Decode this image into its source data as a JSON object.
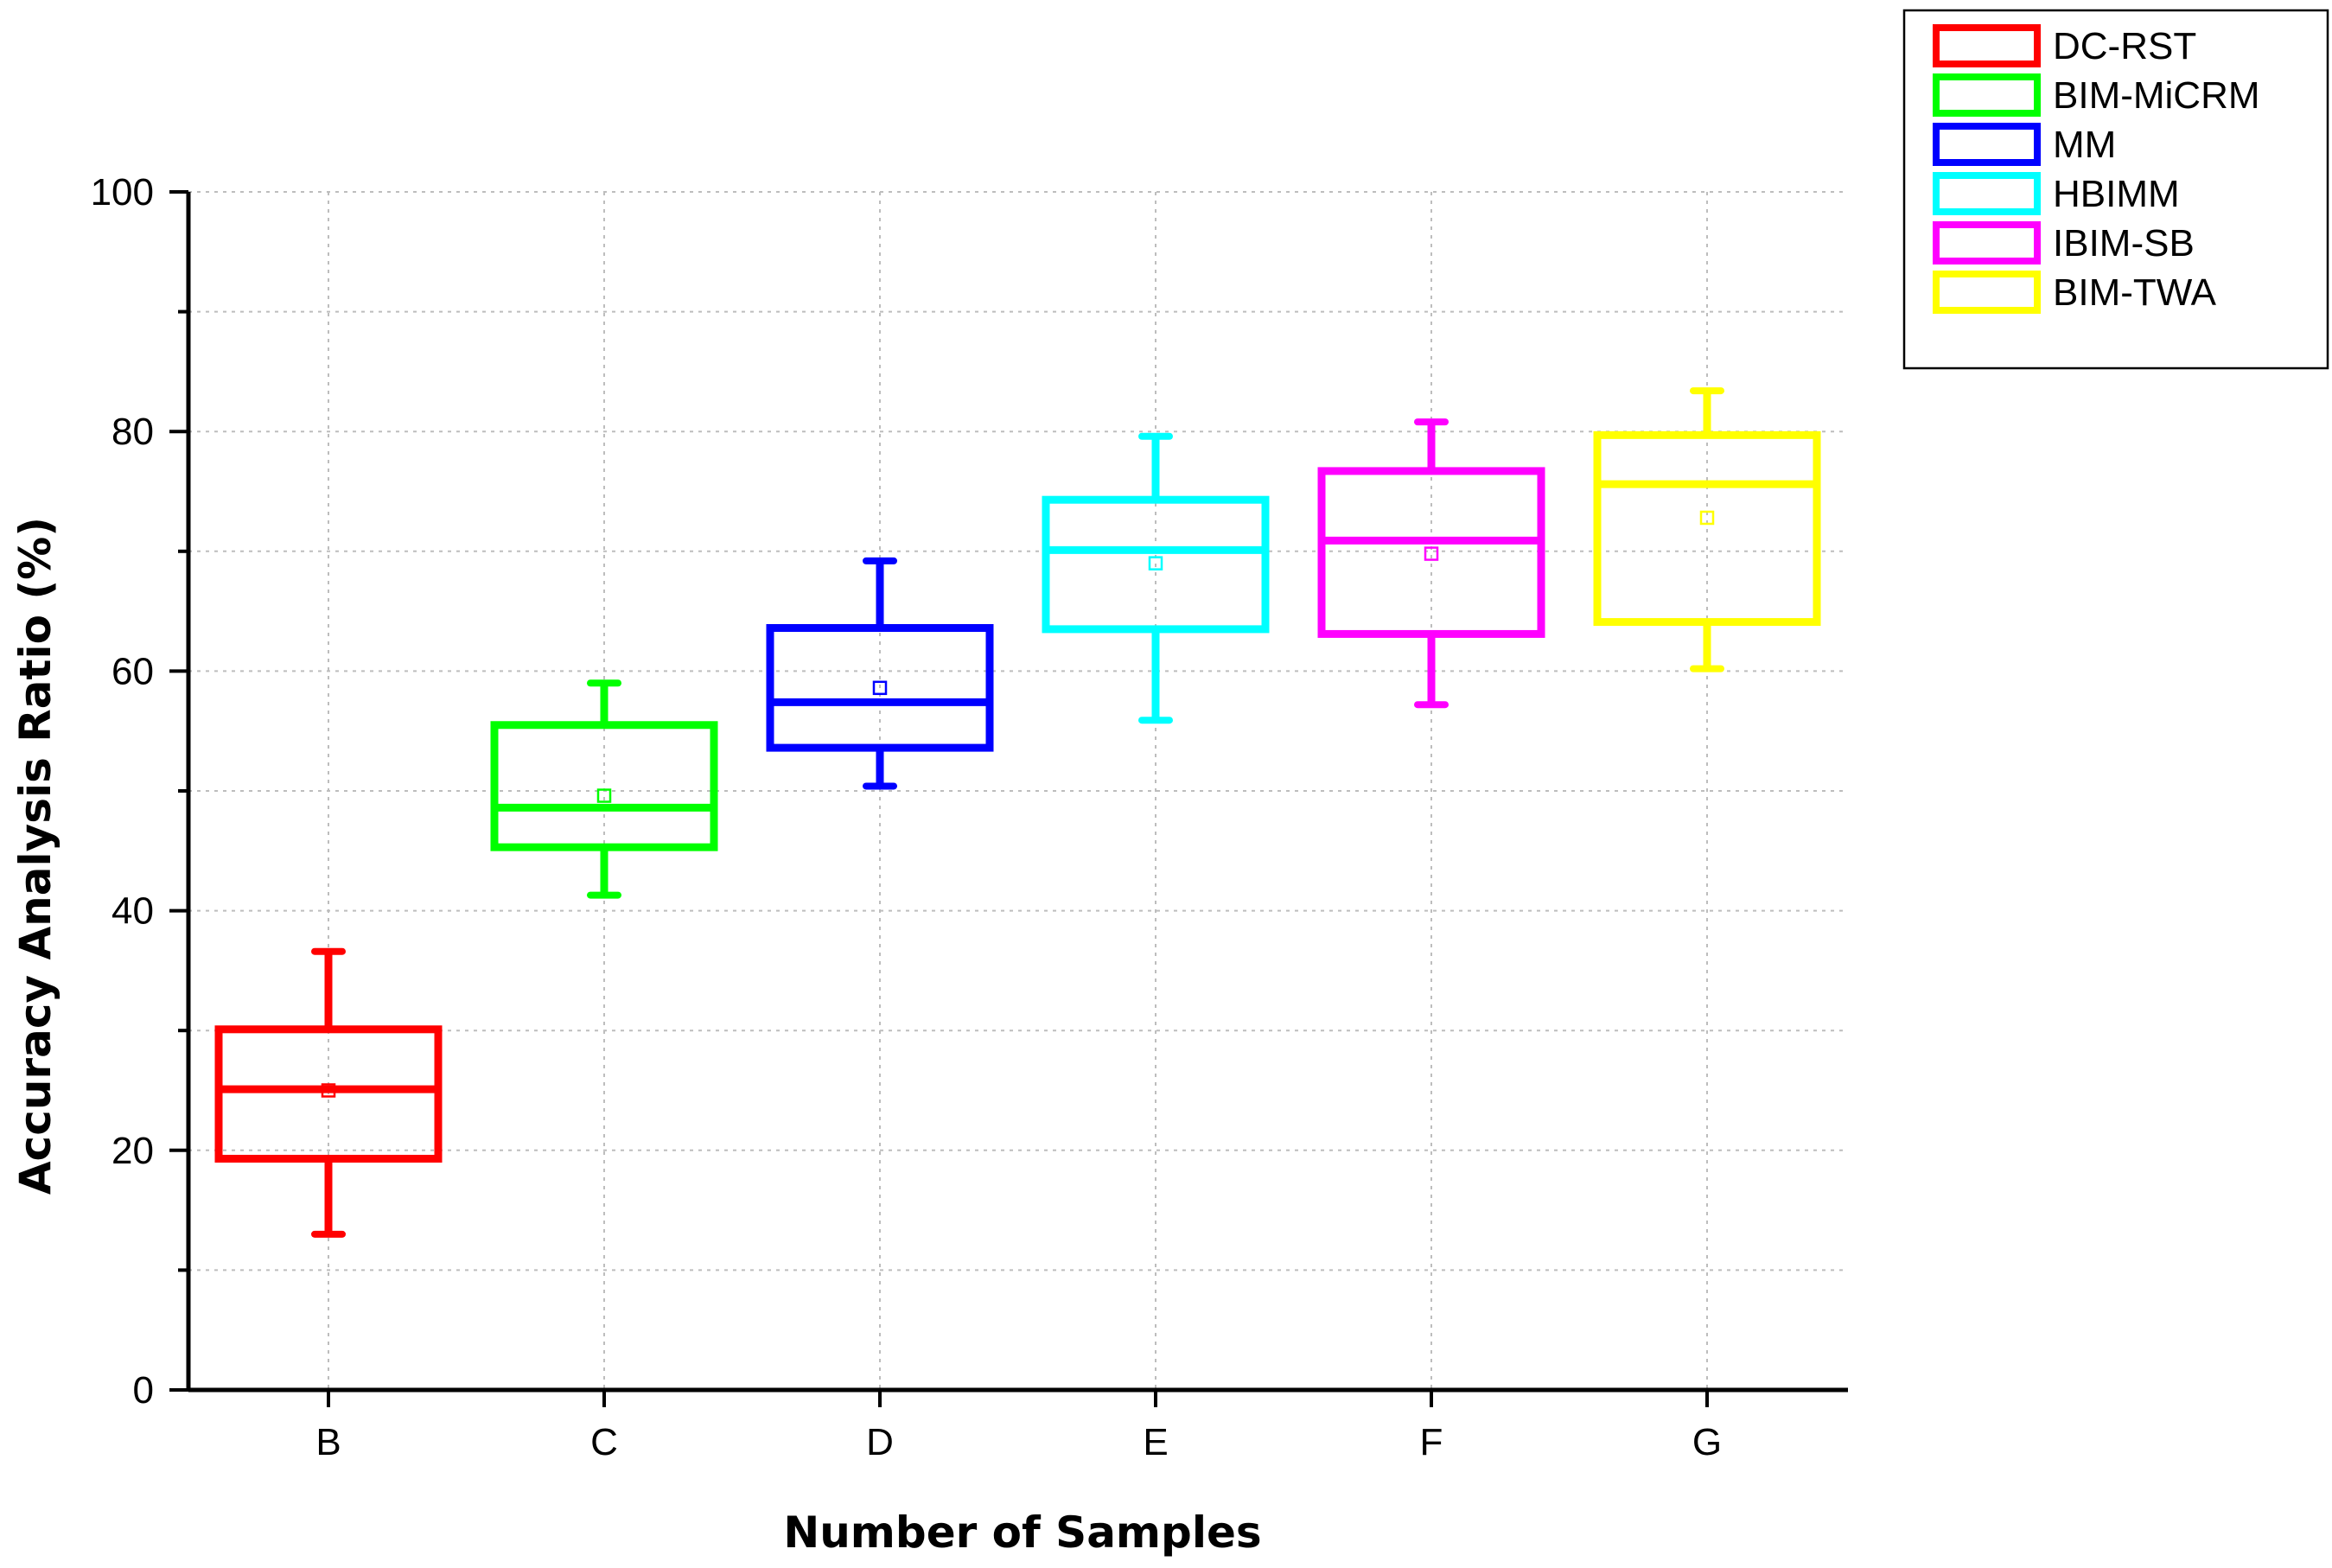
{
  "chart_data": {
    "type": "box",
    "title": "",
    "xlabel": "Number of Samples",
    "ylabel": "Accuracy Analysis Ratio (%)",
    "ylim": [
      0,
      100
    ],
    "yticks": [
      0,
      20,
      40,
      60,
      80,
      100
    ],
    "grid": true,
    "legend_position": "top-right, outside plot",
    "categories": [
      "B",
      "C",
      "D",
      "E",
      "F",
      "G"
    ],
    "series": [
      {
        "name": "DC-RST",
        "color": "#ff0000",
        "category": "B",
        "whisker_low": 13,
        "q1": 19.3,
        "median": 25.1,
        "q3": 30.1,
        "whisker_high": 36.6,
        "mean": 25
      },
      {
        "name": "BIM-MiCRM",
        "color": "#00ff00",
        "category": "C",
        "whisker_low": 41.3,
        "q1": 45.3,
        "median": 48.6,
        "q3": 55.5,
        "whisker_high": 59,
        "mean": 49.6
      },
      {
        "name": "MM",
        "color": "#0000ff",
        "category": "D",
        "whisker_low": 50.4,
        "q1": 53.6,
        "median": 57.4,
        "q3": 63.6,
        "whisker_high": 69.2,
        "mean": 58.6
      },
      {
        "name": "HBIMM",
        "color": "#00ffff",
        "category": "E",
        "whisker_low": 55.9,
        "q1": 63.5,
        "median": 70.1,
        "q3": 74.3,
        "whisker_high": 79.6,
        "mean": 69
      },
      {
        "name": "IBIM-SB",
        "color": "#ff00ff",
        "category": "F",
        "whisker_low": 57.2,
        "q1": 63.1,
        "median": 70.9,
        "q3": 76.7,
        "whisker_high": 80.8,
        "mean": 69.8
      },
      {
        "name": "BIM-TWA",
        "color": "#ffff00",
        "category": "G",
        "whisker_low": 60.2,
        "q1": 64.1,
        "median": 75.6,
        "q3": 79.7,
        "whisker_high": 83.4,
        "mean": 72.8
      }
    ]
  }
}
